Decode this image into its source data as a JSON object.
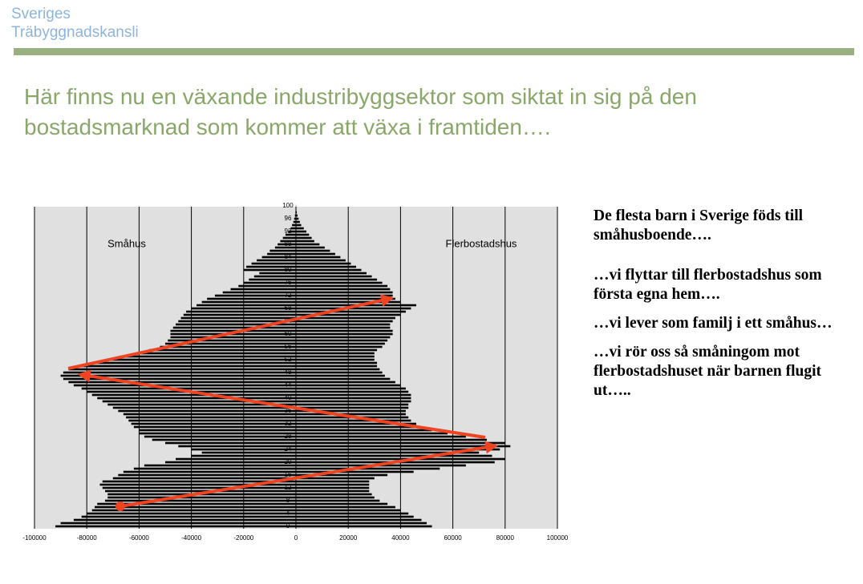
{
  "header": {
    "brand": [
      "Sveriges",
      "Träbyggnadskansli"
    ]
  },
  "title": "Här finns nu en växande industribyggsektor som siktat in sig på den bostadsmarknad som kommer att växa i framtiden….",
  "notes": [
    "De flesta barn i Sverige föds till småhusboende….",
    "…vi flyttar till flerbostadshus som första egna hem….",
    "…vi lever som familj i ett småhus…",
    "…vi  rör oss så småningom mot flerbostadshuset när barnen flugit ut….."
  ],
  "chart_data": {
    "type": "pyramid",
    "categories": [
      "0",
      null,
      null,
      null,
      "4",
      null,
      null,
      null,
      "8",
      null,
      null,
      null,
      "12",
      null,
      null,
      null,
      "16",
      null,
      null,
      null,
      "20",
      null,
      null,
      null,
      "24",
      null,
      null,
      null,
      "28",
      null,
      null,
      null,
      "32",
      null,
      null,
      null,
      "36",
      null,
      null,
      null,
      "40",
      null,
      null,
      null,
      "44",
      null,
      null,
      null,
      "48",
      null,
      null,
      null,
      "52",
      null,
      null,
      null,
      "56",
      null,
      null,
      null,
      "60",
      null,
      null,
      null,
      "64",
      null,
      null,
      null,
      "68",
      null,
      null,
      null,
      "72",
      null,
      null,
      null,
      "76",
      null,
      null,
      null,
      "80",
      null,
      null,
      null,
      "84",
      null,
      null,
      null,
      "88",
      null,
      null,
      null,
      "92",
      null,
      null,
      null,
      "96",
      null,
      null,
      null,
      "100"
    ],
    "series": [
      {
        "name": "Småhus",
        "color": "#000000",
        "values": [
          -92000,
          -90000,
          -85000,
          -82000,
          -80000,
          -78000,
          -77000,
          -76000,
          -73000,
          -72000,
          -72000,
          -73000,
          -74000,
          -75000,
          -74000,
          -70000,
          -68000,
          -66000,
          -62000,
          -58000,
          -50000,
          -46000,
          -40000,
          -36000,
          -40000,
          -45000,
          -50000,
          -55000,
          -58000,
          -60000,
          -60000,
          -62000,
          -63000,
          -64000,
          -65000,
          -66000,
          -68000,
          -70000,
          -72000,
          -74000,
          -76000,
          -78000,
          -80000,
          -82000,
          -85000,
          -87000,
          -89000,
          -90000,
          -89000,
          -87000,
          -82000,
          -78000,
          -72000,
          -66000,
          -60000,
          -56000,
          -52000,
          -50000,
          -49000,
          -48000,
          -48000,
          -48000,
          -47000,
          -46000,
          -45000,
          -44000,
          -43000,
          -42000,
          -40000,
          -38000,
          -36000,
          -34000,
          -31000,
          -28000,
          -25000,
          -22000,
          -20000,
          -18000,
          -16000,
          -14000,
          -20000,
          -19000,
          -17000,
          -15000,
          -13000,
          -11000,
          -10000,
          -8000,
          -7000,
          -6000,
          -5000,
          -4000,
          -3000,
          -2000,
          -1500,
          -1000,
          -700,
          -400,
          -200,
          -100,
          -50
        ]
      },
      {
        "name": "Flerbostadshus",
        "color": "#000000",
        "values": [
          52000,
          50000,
          48000,
          45000,
          43000,
          40000,
          38000,
          35000,
          32000,
          30000,
          29000,
          28000,
          28000,
          28000,
          28000,
          30000,
          35000,
          45000,
          55000,
          65000,
          76000,
          80000,
          75000,
          70000,
          78000,
          82000,
          80000,
          73000,
          65000,
          58000,
          52000,
          48000,
          46000,
          44000,
          43000,
          42000,
          42000,
          43000,
          43000,
          44000,
          44000,
          44000,
          43000,
          42000,
          40000,
          38000,
          36000,
          34000,
          33000,
          32000,
          31000,
          31000,
          30000,
          30000,
          30000,
          31000,
          33000,
          34000,
          35000,
          36000,
          37000,
          37000,
          36000,
          36000,
          37000,
          38000,
          40000,
          42000,
          44000,
          46000,
          40000,
          38000,
          37000,
          37000,
          36000,
          35000,
          33000,
          31000,
          29000,
          27000,
          25000,
          23000,
          21000,
          19000,
          17000,
          15000,
          13000,
          11000,
          9000,
          7000,
          6000,
          5000,
          4000,
          3000,
          2000,
          1500,
          1000,
          600,
          300,
          150,
          50
        ]
      }
    ],
    "xlim": [
      -100000,
      100000
    ],
    "xticks": [
      -100000,
      -80000,
      -60000,
      -40000,
      -20000,
      0,
      20000,
      40000,
      60000,
      80000,
      100000
    ],
    "grid": true,
    "background": "#e0e0e0"
  }
}
